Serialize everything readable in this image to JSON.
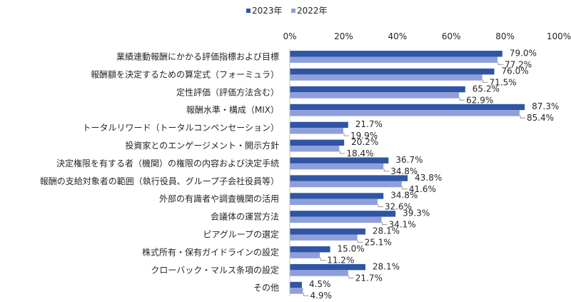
{
  "chart_data": {
    "type": "bar",
    "orientation": "horizontal",
    "categories": [
      "業績連動報酬にかかる評価指標および目標",
      "報酬額を決定するための算定式（フォーミュラ）",
      "定性評価（評価方法含む）",
      "報酬水準・構成（MIX）",
      "トータルリワード（トータルコンペンセーション）",
      "投資家とのエンゲージメント・開示方針",
      "決定権限を有する者（機関）の権限の内容および決定手続",
      "報酬の支給対象者の範囲（執行役員、グループ子会社役員等）",
      "外部の有識者や調査機関の活用",
      "会議体の運営方法",
      "ピアグループの選定",
      "株式所有・保有ガイドラインの設定",
      "クローバック・マルス条項の設定",
      "その他"
    ],
    "series": [
      {
        "name": "2023年",
        "color": "#2f55a4",
        "values": [
          79.0,
          76.0,
          65.2,
          87.3,
          21.7,
          20.2,
          36.7,
          43.8,
          34.8,
          39.3,
          28.1,
          15.0,
          28.1,
          4.5
        ],
        "labels": [
          "79.0%",
          "76.0%",
          "65.2%",
          "87.3%",
          "21.7%",
          "20.2%",
          "36.7%",
          "43.8%",
          "34.8%",
          "39.3%",
          "28.1%",
          "15.0%",
          "28.1%",
          "4.5%"
        ]
      },
      {
        "name": "2022年",
        "color": "#8e9fda",
        "values": [
          77.2,
          71.5,
          62.9,
          85.4,
          19.9,
          18.4,
          34.8,
          41.6,
          32.6,
          34.1,
          25.1,
          11.2,
          21.7,
          4.9
        ],
        "labels": [
          "77.2%",
          "71.5%",
          "62.9%",
          "85.4%",
          "19.9%",
          "18.4%",
          "34.8%",
          "41.6%",
          "32.6%",
          "34.1%",
          "25.1%",
          "11.2%",
          "21.7%",
          "4.9%"
        ]
      }
    ],
    "x_ticks": [
      "0%",
      "20%",
      "40%",
      "60%",
      "80%",
      "100%"
    ],
    "xlim": [
      0,
      100
    ],
    "legend_position": "top",
    "grid": false,
    "title": "",
    "xlabel": "",
    "ylabel": ""
  }
}
